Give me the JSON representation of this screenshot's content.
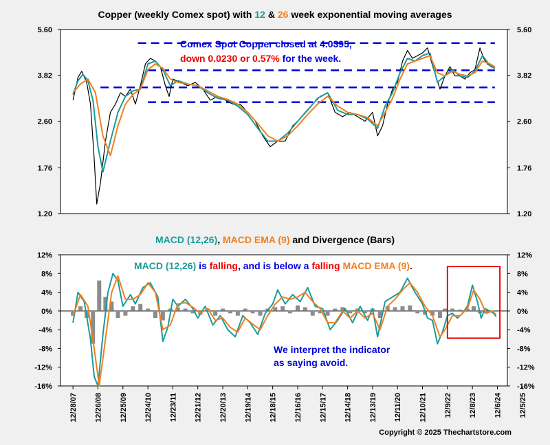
{
  "colors": {
    "price": "#000000",
    "ema12": "#1a9b9b",
    "ema26": "#f07f1e",
    "macd": "#1a9b9b",
    "signal": "#f07f1e",
    "bars": "#8c8c8c",
    "dashed": "#0000dd",
    "annotation_blue": "#0000dd",
    "annotation_red": "#ee0000",
    "box": "#ee0000"
  },
  "chart_data": [
    {
      "type": "line",
      "title_parts": [
        "Copper (weekly Comex spot) with ",
        "12",
        " & ",
        "26",
        " week exponential moving averages"
      ],
      "y_scale": "log",
      "ylim": [
        1.2,
        5.6
      ],
      "yticks": [
        "5.60",
        "3.82",
        "2.60",
        "1.76",
        "1.20"
      ],
      "ytick_values": [
        5.6,
        3.82,
        2.6,
        1.76,
        1.2
      ],
      "annotation": {
        "line1": "Comex Spot Copper closed at 4.0395,",
        "line2_red": "down 0.0230 or 0.57%",
        "line2_blue": " for the week."
      },
      "dashed_levels": [
        {
          "y": 5.0,
          "from": 2010.6,
          "to": 2024.9
        },
        {
          "y": 3.98,
          "from": 2011.0,
          "to": 2024.9
        },
        {
          "y": 3.45,
          "from": 2009.1,
          "to": 2024.9
        },
        {
          "y": 3.05,
          "from": 2011.0,
          "to": 2024.9
        }
      ],
      "series": [
        {
          "role": "price",
          "x": [
            2008.0,
            2008.2,
            2008.35,
            2008.55,
            2008.7,
            2008.85,
            2008.95,
            2009.1,
            2009.3,
            2009.5,
            2009.7,
            2009.9,
            2010.1,
            2010.3,
            2010.5,
            2010.7,
            2010.9,
            2011.1,
            2011.3,
            2011.5,
            2011.7,
            2011.85,
            2012.0,
            2012.3,
            2012.6,
            2012.9,
            2013.2,
            2013.5,
            2013.8,
            2014.1,
            2014.4,
            2014.7,
            2015.0,
            2015.3,
            2015.6,
            2015.9,
            2016.2,
            2016.5,
            2016.8,
            2017.0,
            2017.3,
            2017.6,
            2017.9,
            2018.2,
            2018.5,
            2018.8,
            2019.1,
            2019.4,
            2019.7,
            2020.0,
            2020.2,
            2020.4,
            2020.6,
            2020.8,
            2021.0,
            2021.2,
            2021.4,
            2021.6,
            2021.8,
            2022.0,
            2022.2,
            2022.45,
            2022.7,
            2022.9,
            2023.1,
            2023.3,
            2023.5,
            2023.7,
            2023.9,
            2024.1,
            2024.3,
            2024.45,
            2024.6,
            2024.75,
            2024.9
          ],
          "values": [
            3.1,
            3.75,
            3.95,
            3.6,
            3.0,
            1.9,
            1.3,
            1.55,
            2.2,
            2.8,
            3.0,
            3.3,
            3.2,
            3.4,
            3.0,
            3.5,
            4.2,
            4.4,
            4.3,
            4.1,
            3.5,
            3.2,
            3.7,
            3.6,
            3.5,
            3.6,
            3.4,
            3.1,
            3.2,
            3.1,
            3.0,
            3.0,
            2.8,
            2.6,
            2.3,
            2.1,
            2.2,
            2.2,
            2.5,
            2.6,
            2.8,
            3.0,
            3.2,
            3.3,
            2.8,
            2.7,
            2.8,
            2.7,
            2.6,
            2.8,
            2.3,
            2.5,
            3.0,
            3.4,
            3.6,
            4.3,
            4.7,
            4.4,
            4.5,
            4.6,
            4.8,
            4.0,
            3.4,
            3.8,
            4.1,
            3.8,
            3.8,
            3.7,
            3.9,
            4.0,
            4.8,
            4.4,
            4.2,
            4.1,
            4.04
          ]
        },
        {
          "role": "ema12",
          "x": [
            2008.0,
            2008.2,
            2008.4,
            2008.6,
            2008.8,
            2009.0,
            2009.2,
            2009.5,
            2009.8,
            2010.1,
            2010.4,
            2010.7,
            2011.0,
            2011.3,
            2011.6,
            2011.9,
            2012.2,
            2012.6,
            2013.0,
            2013.4,
            2013.8,
            2014.2,
            2014.6,
            2015.0,
            2015.4,
            2015.8,
            2016.2,
            2016.6,
            2017.0,
            2017.4,
            2017.8,
            2018.2,
            2018.6,
            2019.0,
            2019.4,
            2019.8,
            2020.2,
            2020.5,
            2020.8,
            2021.1,
            2021.4,
            2021.7,
            2022.0,
            2022.3,
            2022.6,
            2022.9,
            2023.2,
            2023.5,
            2023.8,
            2024.1,
            2024.4,
            2024.7,
            2024.9
          ],
          "values": [
            3.25,
            3.65,
            3.85,
            3.65,
            3.1,
            2.1,
            1.7,
            2.2,
            2.8,
            3.2,
            3.35,
            3.4,
            4.2,
            4.3,
            4.0,
            3.5,
            3.65,
            3.55,
            3.5,
            3.3,
            3.15,
            3.1,
            2.95,
            2.75,
            2.45,
            2.2,
            2.2,
            2.35,
            2.6,
            2.85,
            3.15,
            3.3,
            2.85,
            2.75,
            2.75,
            2.65,
            2.45,
            2.95,
            3.3,
            3.9,
            4.4,
            4.3,
            4.5,
            4.6,
            3.6,
            3.8,
            4.0,
            3.8,
            3.75,
            3.95,
            4.5,
            4.15,
            4.05
          ]
        },
        {
          "role": "ema26",
          "x": [
            2008.0,
            2008.3,
            2008.6,
            2008.9,
            2009.2,
            2009.5,
            2009.8,
            2010.1,
            2010.4,
            2010.7,
            2011.0,
            2011.3,
            2011.6,
            2011.9,
            2012.2,
            2012.6,
            2013.0,
            2013.4,
            2013.8,
            2014.2,
            2014.6,
            2015.0,
            2015.4,
            2015.8,
            2016.2,
            2016.6,
            2017.0,
            2017.4,
            2017.8,
            2018.2,
            2018.6,
            2019.0,
            2019.4,
            2019.8,
            2020.2,
            2020.5,
            2020.8,
            2021.1,
            2021.4,
            2021.7,
            2022.0,
            2022.3,
            2022.6,
            2022.9,
            2023.2,
            2023.5,
            2023.8,
            2024.1,
            2024.4,
            2024.7,
            2024.9
          ],
          "values": [
            3.3,
            3.55,
            3.7,
            3.3,
            2.3,
            1.95,
            2.5,
            3.0,
            3.25,
            3.4,
            4.0,
            4.2,
            4.05,
            3.7,
            3.6,
            3.55,
            3.5,
            3.35,
            3.2,
            3.12,
            3.0,
            2.8,
            2.55,
            2.3,
            2.2,
            2.3,
            2.5,
            2.75,
            3.0,
            3.2,
            2.95,
            2.8,
            2.75,
            2.68,
            2.5,
            2.8,
            3.15,
            3.7,
            4.2,
            4.3,
            4.4,
            4.5,
            3.9,
            3.8,
            3.95,
            3.85,
            3.8,
            3.9,
            4.3,
            4.2,
            4.1
          ]
        }
      ]
    },
    {
      "type": "line",
      "title_parts": [
        "MACD (12,26)",
        ", ",
        "MACD EMA (9)",
        " and Divergence (Bars)"
      ],
      "ylim": [
        -16,
        12
      ],
      "yticks": [
        "12%",
        "8%",
        "4%",
        "0%",
        "-4%",
        "-8%",
        "-12%",
        "-16%"
      ],
      "ytick_values": [
        12,
        8,
        4,
        0,
        -4,
        -8,
        -12,
        -16
      ],
      "annotation": {
        "parts": [
          {
            "text": "MACD (12,26) ",
            "color": "macd"
          },
          {
            "text": "is ",
            "color": "annotation_blue"
          },
          {
            "text": "falling",
            "color": "annotation_red"
          },
          {
            "text": ", and is below a ",
            "color": "annotation_blue"
          },
          {
            "text": "falling ",
            "color": "annotation_red"
          },
          {
            "text": "MACD EMA (9)",
            "color": "signal"
          },
          {
            "text": ".",
            "color": "annotation_blue"
          }
        ],
        "line_a": "We interpret the indicator",
        "line_b": "as saying avoid."
      },
      "highlight_box": {
        "x": [
          2023.0,
          2025.1
        ],
        "y": [
          9.5,
          -5.8
        ]
      },
      "series": [
        {
          "role": "macd",
          "x": [
            2008.0,
            2008.2,
            2008.45,
            2008.7,
            2008.85,
            2009.0,
            2009.2,
            2009.4,
            2009.6,
            2009.8,
            2010.0,
            2010.3,
            2010.5,
            2010.8,
            2011.1,
            2011.4,
            2011.6,
            2011.8,
            2012.0,
            2012.2,
            2012.5,
            2012.8,
            2013.0,
            2013.3,
            2013.6,
            2013.9,
            2014.2,
            2014.5,
            2014.8,
            2015.1,
            2015.4,
            2015.7,
            2016.0,
            2016.2,
            2016.5,
            2016.8,
            2017.1,
            2017.4,
            2017.7,
            2018.0,
            2018.3,
            2018.6,
            2018.9,
            2019.2,
            2019.5,
            2019.8,
            2020.0,
            2020.2,
            2020.5,
            2020.8,
            2021.1,
            2021.4,
            2021.7,
            2022.0,
            2022.2,
            2022.4,
            2022.6,
            2022.8,
            2023.0,
            2023.2,
            2023.4,
            2023.6,
            2023.8,
            2024.0,
            2024.2,
            2024.35,
            2024.5,
            2024.7,
            2024.85,
            2024.95
          ],
          "values": [
            -2.5,
            4.0,
            2.0,
            -6.0,
            -14.0,
            -18.0,
            -5.0,
            4.0,
            8.0,
            6.5,
            1.0,
            3.5,
            1.5,
            5.0,
            6.0,
            3.0,
            -6.5,
            -3.5,
            2.5,
            1.0,
            2.5,
            0.5,
            -1.5,
            1.0,
            -3.0,
            -1.0,
            -4.0,
            -5.5,
            -1.0,
            -2.5,
            -5.0,
            -0.5,
            1.5,
            4.5,
            1.5,
            3.5,
            2.0,
            5.0,
            1.0,
            0.5,
            -4.0,
            -2.0,
            0.5,
            -2.5,
            1.0,
            -2.0,
            0.5,
            -5.5,
            2.0,
            3.0,
            4.0,
            7.0,
            4.0,
            1.5,
            -1.5,
            -2.0,
            -7.0,
            -4.5,
            -1.0,
            -0.5,
            -1.5,
            -0.5,
            1.0,
            5.5,
            2.0,
            -1.5,
            0.5,
            0.0,
            -0.5,
            -1.2
          ]
        },
        {
          "role": "signal",
          "x": [
            2008.0,
            2008.3,
            2008.6,
            2008.85,
            2009.05,
            2009.3,
            2009.55,
            2009.8,
            2010.1,
            2010.4,
            2010.7,
            2011.0,
            2011.3,
            2011.6,
            2011.9,
            2012.2,
            2012.5,
            2012.8,
            2013.1,
            2013.4,
            2013.7,
            2014.0,
            2014.3,
            2014.6,
            2014.9,
            2015.2,
            2015.5,
            2015.8,
            2016.1,
            2016.4,
            2016.7,
            2017.0,
            2017.3,
            2017.6,
            2017.9,
            2018.2,
            2018.5,
            2018.8,
            2019.1,
            2019.4,
            2019.7,
            2020.0,
            2020.3,
            2020.6,
            2020.9,
            2021.2,
            2021.5,
            2021.8,
            2022.1,
            2022.4,
            2022.7,
            2022.9,
            2023.2,
            2023.5,
            2023.8,
            2024.05,
            2024.3,
            2024.55,
            2024.8,
            2024.95
          ],
          "values": [
            -1.0,
            3.5,
            1.0,
            -8.0,
            -17.0,
            -6.0,
            4.0,
            7.5,
            2.5,
            2.5,
            3.5,
            6.0,
            4.0,
            -4.0,
            -3.0,
            1.5,
            1.8,
            0.8,
            -0.5,
            0.5,
            -2.0,
            -1.5,
            -3.5,
            -4.5,
            -1.5,
            -2.8,
            -4.0,
            -1.0,
            1.5,
            3.0,
            2.5,
            3.0,
            4.0,
            2.0,
            0.5,
            -2.5,
            -2.5,
            0.0,
            -1.5,
            0.0,
            -1.5,
            -0.5,
            -4.0,
            1.0,
            2.5,
            4.5,
            6.0,
            4.0,
            1.0,
            -1.0,
            -5.5,
            -4.0,
            -1.0,
            -1.0,
            0.5,
            4.5,
            2.5,
            -0.5,
            0.0,
            -0.8
          ]
        },
        {
          "role": "divergence",
          "type": "bar",
          "x": [
            2008.0,
            2008.3,
            2008.55,
            2008.8,
            2009.05,
            2009.3,
            2009.55,
            2009.8,
            2010.1,
            2010.4,
            2010.7,
            2011.0,
            2011.3,
            2011.6,
            2011.9,
            2012.2,
            2012.5,
            2012.8,
            2013.1,
            2013.4,
            2013.7,
            2014.0,
            2014.3,
            2014.6,
            2014.9,
            2015.2,
            2015.5,
            2015.8,
            2016.1,
            2016.4,
            2016.7,
            2017.0,
            2017.3,
            2017.6,
            2017.9,
            2018.2,
            2018.5,
            2018.8,
            2019.1,
            2019.4,
            2019.7,
            2020.0,
            2020.3,
            2020.6,
            2020.9,
            2021.2,
            2021.5,
            2021.8,
            2022.1,
            2022.4,
            2022.7,
            2022.9,
            2023.2,
            2023.5,
            2023.8,
            2024.05,
            2024.3,
            2024.55,
            2024.8
          ],
          "values": [
            -1.0,
            1.0,
            -1.5,
            -7.0,
            6.5,
            3.0,
            2.0,
            -1.5,
            -1.0,
            1.0,
            1.5,
            0.5,
            -1.5,
            -2.0,
            0.5,
            0.8,
            0.5,
            -0.5,
            -0.8,
            0.5,
            -1.0,
            0.5,
            -0.5,
            -1.0,
            0.5,
            -0.5,
            -1.0,
            0.5,
            0.8,
            1.0,
            -0.5,
            1.2,
            0.8,
            -1.0,
            -0.5,
            -1.0,
            0.5,
            0.8,
            -0.5,
            0.5,
            -0.5,
            0.5,
            -1.5,
            1.0,
            0.8,
            1.0,
            1.2,
            -0.5,
            -0.8,
            -1.0,
            -1.5,
            0.5,
            0.5,
            0.3,
            0.5,
            1.0,
            -0.5,
            -0.5,
            -0.3
          ]
        }
      ]
    }
  ],
  "x_axis": {
    "xlim": [
      2007.5,
      2025.4
    ],
    "tick_labels": [
      "12/28/07",
      "12/26/08",
      "12/25/09",
      "12/24/10",
      "12/23/11",
      "12/21/12",
      "12/20/13",
      "12/19/14",
      "12/18/15",
      "12/16/16",
      "12/15/17",
      "12/14/18",
      "12/13/19",
      "12/11/20",
      "12/10/21",
      "12/9/22",
      "12/8/23",
      "12/6/24",
      "12/5/25"
    ],
    "tick_values": [
      2008.0,
      2009.0,
      2010.0,
      2011.0,
      2012.0,
      2013.0,
      2014.0,
      2015.0,
      2016.0,
      2017.0,
      2018.0,
      2019.0,
      2020.0,
      2021.0,
      2022.0,
      2023.0,
      2024.0,
      2025.0,
      2026.0
    ]
  },
  "copyright": "Copyright © 2025 Thechartstore.com"
}
